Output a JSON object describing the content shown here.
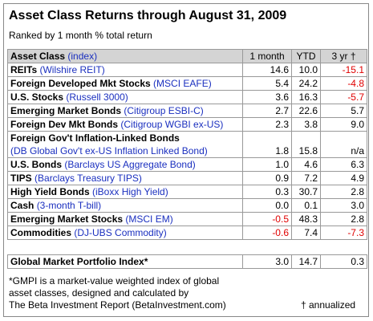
{
  "header": {
    "title": "Asset Class Returns through August 31, 2009",
    "subtitle": "Ranked by 1 month % total return"
  },
  "table": {
    "columns": {
      "name": "Asset Class",
      "index": "(index)",
      "values": [
        "1 month",
        "YTD",
        "3 yr †"
      ]
    },
    "rows": [
      {
        "name": "REITs",
        "index": "(Wilshire REIT)",
        "values": [
          "14.6",
          "10.0",
          "-15.1"
        ]
      },
      {
        "name": "Foreign Developed Mkt Stocks",
        "index": "(MSCI EAFE)",
        "values": [
          "5.4",
          "24.2",
          "-4.8"
        ]
      },
      {
        "name": "U.S. Stocks",
        "index": "(Russell 3000)",
        "values": [
          "3.6",
          "16.3",
          "-5.7"
        ]
      },
      {
        "name": "Emerging Market Bonds",
        "index": "(Citigroup ESBI-C)",
        "values": [
          "2.7",
          "22.6",
          "5.7"
        ]
      },
      {
        "name": "Foreign Dev Mkt Bonds",
        "index": "(Citigroup WGBI ex-US)",
        "values": [
          "2.3",
          "3.8",
          "9.0"
        ]
      },
      {
        "name": "Foreign Gov't Inflation-Linked Bonds",
        "index": "(DB Global Gov't ex-US Inflation Linked Bond)",
        "values": [
          "1.8",
          "15.8",
          "n/a"
        ]
      },
      {
        "name": "U.S. Bonds",
        "index": "(Barclays US Aggregate Bond)",
        "values": [
          "1.0",
          "4.6",
          "6.3"
        ]
      },
      {
        "name": "TIPS",
        "index": "(Barclays Treasury TIPS)",
        "values": [
          "0.9",
          "7.2",
          "4.9"
        ]
      },
      {
        "name": "High Yield Bonds",
        "index": "(iBoxx High Yield)",
        "values": [
          "0.3",
          "30.7",
          "2.8"
        ]
      },
      {
        "name": "Cash",
        "index": "(3-month T-bill)",
        "values": [
          "0.0",
          "0.1",
          "3.0"
        ]
      },
      {
        "name": "Emerging Market Stocks",
        "index": "(MSCI EM)",
        "values": [
          "-0.5",
          "48.3",
          "2.8"
        ]
      },
      {
        "name": "Commodities",
        "index": "(DJ-UBS Commodity)",
        "values": [
          "-0.6",
          "7.4",
          "-7.3"
        ]
      }
    ],
    "total": {
      "name": "Global Market Portfolio Index*",
      "values": [
        "3.0",
        "14.7",
        "0.3"
      ]
    }
  },
  "footnote": {
    "lines": [
      "*GMPI is a market-value weighted index of global",
      "asset classes, designed and calculated by",
      "The Beta Investment Report (BetaInvestment.com)"
    ],
    "note": "† annualized"
  }
}
